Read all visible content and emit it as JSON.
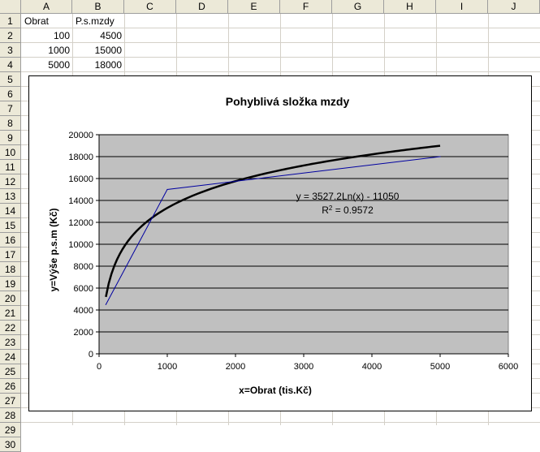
{
  "spreadsheet": {
    "columns": [
      "A",
      "B",
      "C",
      "D",
      "E",
      "F",
      "G",
      "H",
      "I",
      "J"
    ],
    "rows": [
      "1",
      "2",
      "3",
      "4",
      "5",
      "6",
      "7",
      "8",
      "9",
      "10",
      "11",
      "12",
      "13",
      "14",
      "15",
      "16",
      "17",
      "18",
      "19",
      "20",
      "21",
      "22",
      "23",
      "24",
      "25",
      "26",
      "27",
      "28",
      "29",
      "30"
    ],
    "cells": {
      "A1": "Obrat",
      "B1": "P.s.mzdy",
      "A2": "100",
      "B2": "4500",
      "A3": "1000",
      "B3": "15000",
      "A4": "5000",
      "B4": "18000"
    }
  },
  "chart_data": {
    "type": "line",
    "title": "Pohyblivá složka mzdy",
    "xlabel": "x=Obrat (tis.Kč)",
    "ylabel": "y=Výše p.s.m (Kč)",
    "xlim": [
      0,
      6000
    ],
    "ylim": [
      0,
      20000
    ],
    "xticks": [
      "0",
      "1000",
      "2000",
      "3000",
      "4000",
      "5000",
      "6000"
    ],
    "yticks": [
      "0",
      "2000",
      "4000",
      "6000",
      "8000",
      "10000",
      "12000",
      "14000",
      "16000",
      "18000",
      "20000"
    ],
    "grid": true,
    "plot_background": "#c0c0c0",
    "series": [
      {
        "color": "#0000a0",
        "x": [
          100,
          1000,
          5000
        ],
        "y": [
          4500,
          15000,
          18000
        ]
      }
    ],
    "trendline": {
      "type": "logarithmic",
      "a": 3527.2,
      "b": -11050,
      "x_range": [
        100,
        5000
      ],
      "color": "#000000",
      "equation_label": "y = 3527.2Ln(x) - 11050",
      "r2_prefix": "R",
      "r2_sup": "2",
      "r2_value": " = 0.9572"
    }
  }
}
